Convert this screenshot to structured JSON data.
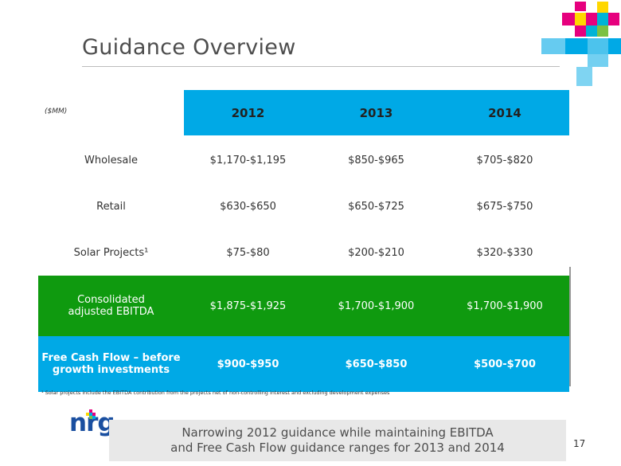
{
  "title": "Guidance Overview",
  "table": {
    "unit_label": "($MM)",
    "years": [
      "2012",
      "2013",
      "2014"
    ],
    "rows": [
      {
        "label": "Wholesale",
        "values": [
          "$1,170-$1,195",
          "$850-$965",
          "$705-$820"
        ]
      },
      {
        "label": "Retail",
        "values": [
          "$630-$650",
          "$650-$725",
          "$675-$750"
        ]
      },
      {
        "label": "Solar Projects¹",
        "values": [
          "$75-$80",
          "$200-$210",
          "$320-$330"
        ]
      },
      {
        "label_line1": "Consolidated",
        "label_line2": "adjusted EBITDA",
        "values": [
          "$1,875-$1,925",
          "$1,700-$1,900",
          "$1,700-$1,900"
        ]
      },
      {
        "label_line1": "Free Cash Flow – before",
        "label_line2": "growth investments",
        "values": [
          "$900-$950",
          "$650-$850",
          "$500-$700"
        ]
      }
    ]
  },
  "footnote": "¹ Solar projects include the EBITDA contribution from the projects net of non-controlling interest and excluding development expenses",
  "logo": {
    "text": "nrg",
    "tm": "™"
  },
  "banner": {
    "line1": "Narrowing 2012 guidance while maintaining EBITDA",
    "line2": "and Free Cash Flow guidance ranges for 2013 and 2014"
  },
  "page_number": "17",
  "colors": {
    "header_blue": "#00a9e6",
    "ebitda_green": "#0f9a0f",
    "fcf_blue": "#00a9e6"
  }
}
